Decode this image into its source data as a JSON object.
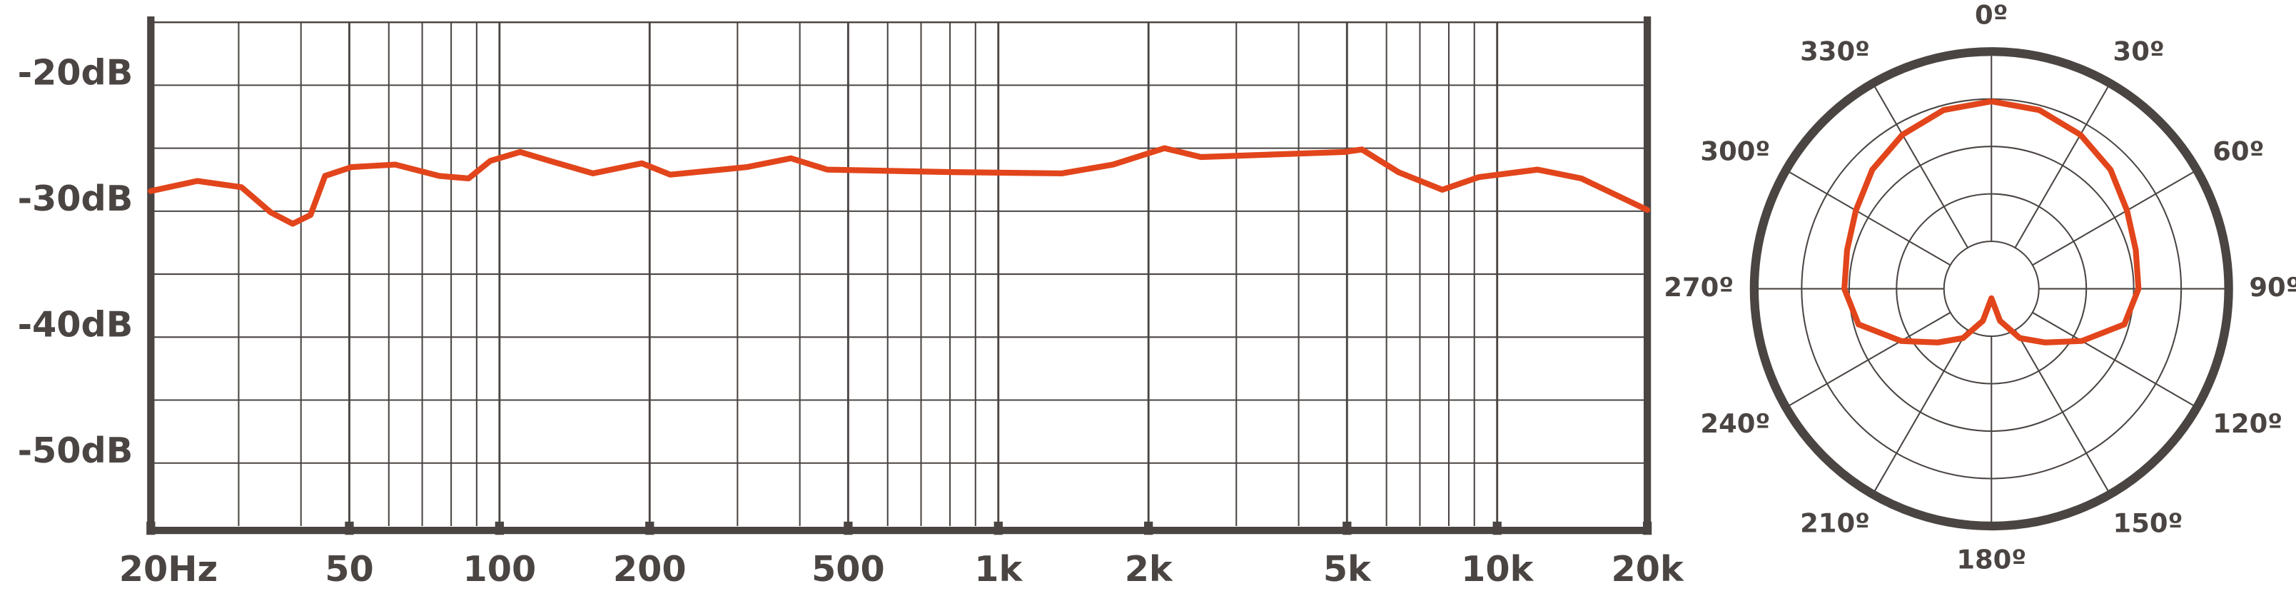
{
  "chart_data": [
    {
      "type": "line",
      "x": [
        20,
        24.8,
        30.4,
        34.8,
        38.5,
        41.8,
        44.7,
        50.5,
        61.8,
        75.7,
        86.7,
        95.9,
        110,
        126,
        154,
        193,
        220,
        313,
        384,
        454,
        807,
        1340,
        1698,
        2153,
        2547,
        4940,
        5356,
        6339,
        7762,
        9184,
        12050,
        14750,
        20000
      ],
      "values": [
        -28.4,
        -27.6,
        -28.1,
        -30.1,
        -31.0,
        -30.3,
        -27.2,
        -26.5,
        -26.3,
        -27.2,
        -27.4,
        -26.0,
        -25.3,
        -26.0,
        -27.0,
        -26.2,
        -27.1,
        -26.5,
        -25.8,
        -26.7,
        -26.9,
        -27.0,
        -26.3,
        -25.0,
        -25.7,
        -25.3,
        -25.1,
        -26.9,
        -28.3,
        -27.3,
        -26.7,
        -27.4,
        -29.9
      ],
      "color": "#e2451b",
      "log_x": true,
      "xlim": [
        20,
        20000
      ],
      "ylim": [
        -55,
        -15
      ],
      "xticks": [
        {
          "value": 20,
          "label": "20Hz"
        },
        50,
        100,
        200,
        500,
        {
          "value": 1000,
          "label": "1k"
        },
        {
          "value": 2000,
          "label": "2k"
        },
        {
          "value": 5000,
          "label": "5k"
        },
        {
          "value": 10000,
          "label": "10k"
        },
        {
          "value": 20000,
          "label": "20k"
        }
      ],
      "x_gridlines": [
        30,
        40,
        60,
        70,
        80,
        90,
        300,
        400,
        600,
        700,
        800,
        900,
        3000,
        4000,
        6000,
        7000,
        8000,
        9000
      ],
      "yticks": [
        {
          "value": -20,
          "label": "-20dB"
        },
        {
          "value": -30,
          "label": "-30dB"
        },
        {
          "value": -40,
          "label": "-40dB"
        },
        {
          "value": -50,
          "label": "-50dB"
        }
      ],
      "y_gridlines": [
        -15,
        -25,
        -35,
        -45
      ],
      "grid": true
    },
    {
      "type": "polar",
      "x": [
        0,
        15,
        30,
        45,
        60,
        75,
        90,
        105,
        120,
        135,
        150,
        165,
        180,
        195,
        210,
        225,
        240,
        255,
        270,
        285,
        300,
        315,
        330,
        345,
        360
      ],
      "values": [
        3.95,
        3.9,
        3.75,
        3.55,
        3.3,
        3.15,
        3.1,
        2.9,
        2.2,
        1.6,
        1.2,
        0.7,
        0.2,
        0.7,
        1.2,
        1.6,
        2.2,
        2.9,
        3.1,
        3.15,
        3.3,
        3.55,
        3.75,
        3.9,
        3.95
      ],
      "color": "#e2451b",
      "rlim": [
        0,
        5
      ],
      "rticks": [
        1,
        2,
        3,
        4,
        5
      ],
      "thetaticks": [
        {
          "value": 0,
          "label": "0º"
        },
        {
          "value": 30,
          "label": "30º"
        },
        {
          "value": 60,
          "label": "60º"
        },
        {
          "value": 90,
          "label": "90º"
        },
        {
          "value": 120,
          "label": "120º"
        },
        {
          "value": 150,
          "label": "150º"
        },
        {
          "value": 180,
          "label": "180º"
        },
        {
          "value": 210,
          "label": "210º"
        },
        {
          "value": 240,
          "label": "240º"
        },
        {
          "value": 270,
          "label": "270º"
        },
        {
          "value": 300,
          "label": "300º"
        },
        {
          "value": 330,
          "label": "330º"
        }
      ]
    }
  ]
}
